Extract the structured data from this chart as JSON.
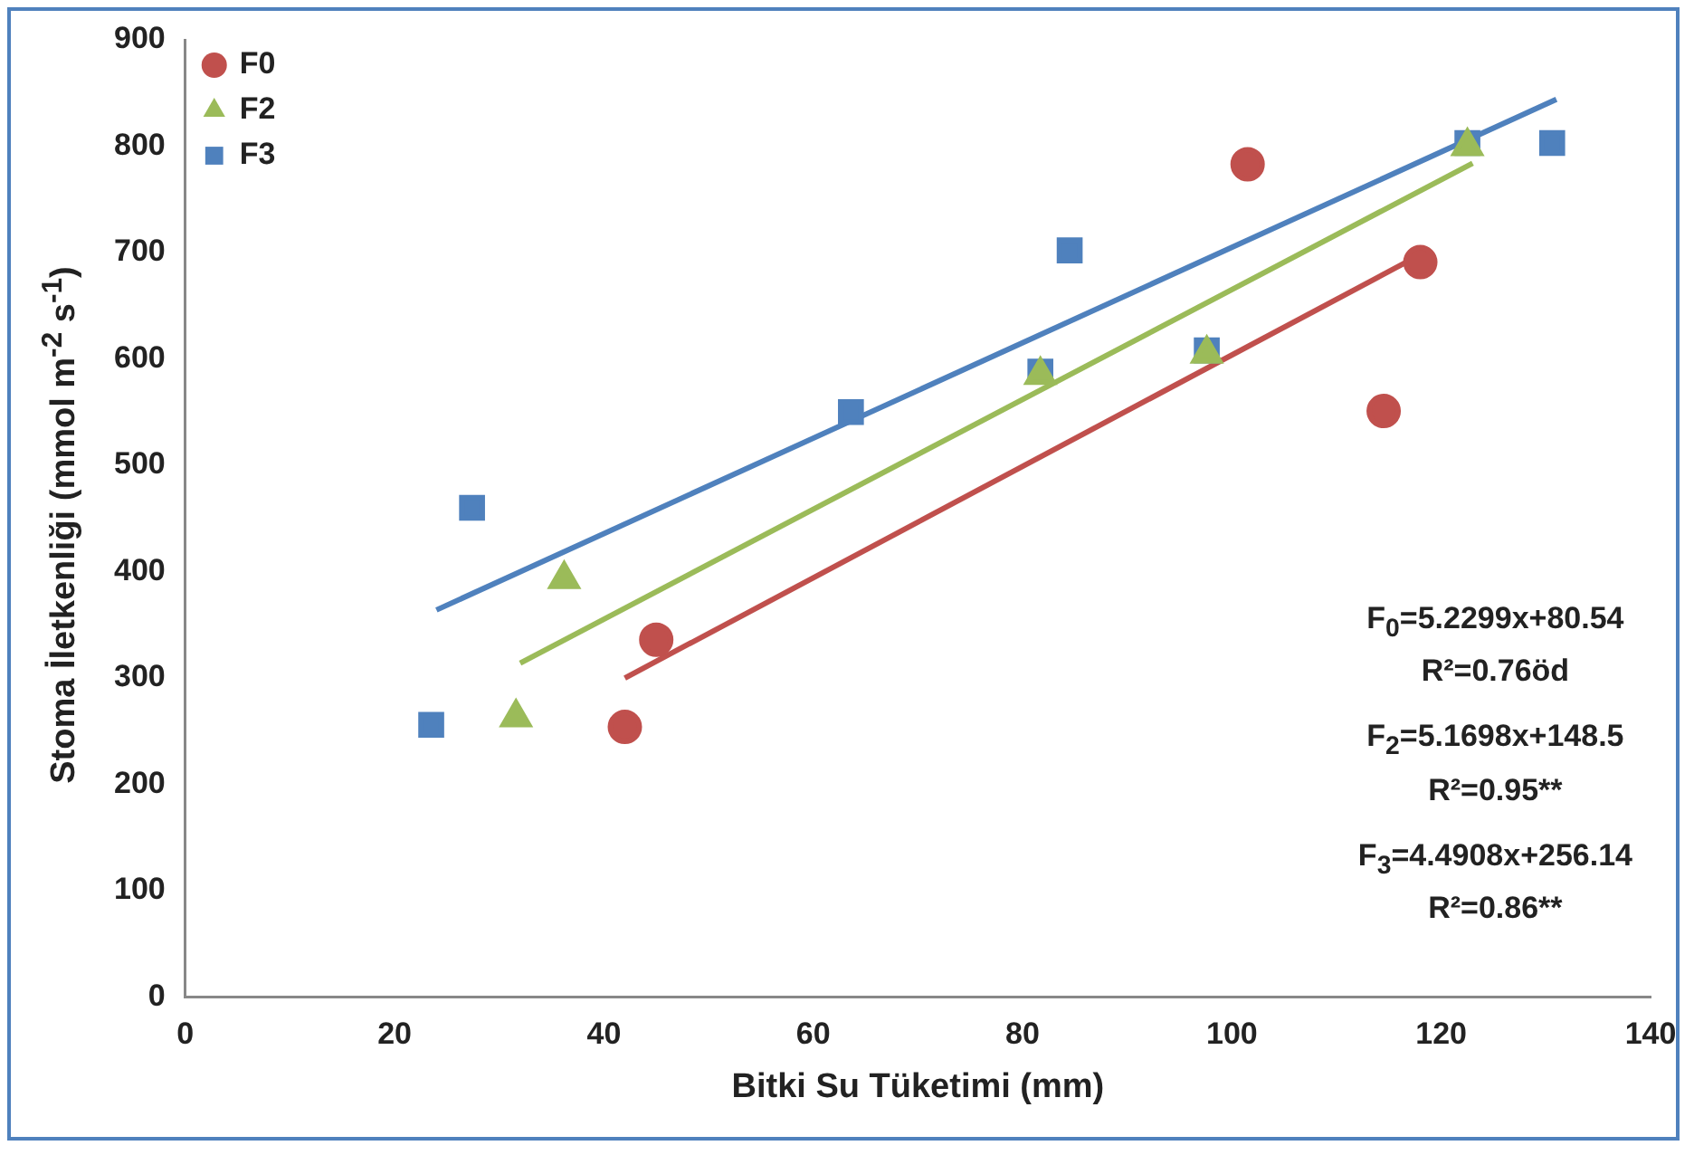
{
  "chart_data": {
    "type": "scatter",
    "xlabel": "Bitki Su Tüketimi (mm)",
    "ylabel": "Stoma İletkenliği (mmol m$^{-2}$ s$^{-1}$)",
    "xlim": [
      0,
      140
    ],
    "xticks": [
      0,
      20,
      40,
      60,
      80,
      100,
      120,
      140
    ],
    "ylim": [
      0,
      900
    ],
    "yticks": [
      0,
      100,
      200,
      300,
      400,
      500,
      600,
      700,
      800,
      900
    ],
    "grid": false,
    "legend": "top left",
    "series": [
      {
        "name": "F0",
        "type": "scatter",
        "marker": "circle",
        "color": "#c0504d",
        "x": [
          42,
          45,
          101.5,
          114.5,
          118
        ],
        "values": [
          254,
          336,
          783,
          551,
          691
        ]
      },
      {
        "name": "F2",
        "type": "scatter",
        "marker": "triangle",
        "color": "#9bbb59",
        "x": [
          31.6,
          36.2,
          81.7,
          97.6,
          122.5
        ],
        "values": [
          263,
          393,
          585,
          605,
          800
        ]
      },
      {
        "name": "F3",
        "type": "scatter",
        "marker": "square",
        "color": "#4f81bd",
        "x": [
          23.5,
          27.4,
          63.6,
          81.7,
          84.5,
          97.6,
          122.5,
          130.6
        ],
        "values": [
          256,
          460,
          550,
          588,
          702,
          608,
          803,
          803
        ]
      },
      {
        "type": "line",
        "marker": "none",
        "color": "#c0504d",
        "x": [
          42,
          118
        ],
        "values": [
          300,
          698
        ]
      },
      {
        "type": "line",
        "marker": "none",
        "color": "#9bbb59",
        "x": [
          32,
          123
        ],
        "values": [
          314,
          784
        ]
      },
      {
        "type": "line",
        "marker": "none",
        "color": "#4f81bd",
        "x": [
          24,
          131
        ],
        "values": [
          364,
          844
        ]
      }
    ],
    "annotations": [
      "F$_{0}$=5.2299x+80.54",
      "R²=0.76öd",
      "F$_{2}$=5.1698x+148.5",
      "R²=0.95**",
      "F$_{3}$=4.4908x+256.14",
      "R²=0.86**"
    ]
  }
}
